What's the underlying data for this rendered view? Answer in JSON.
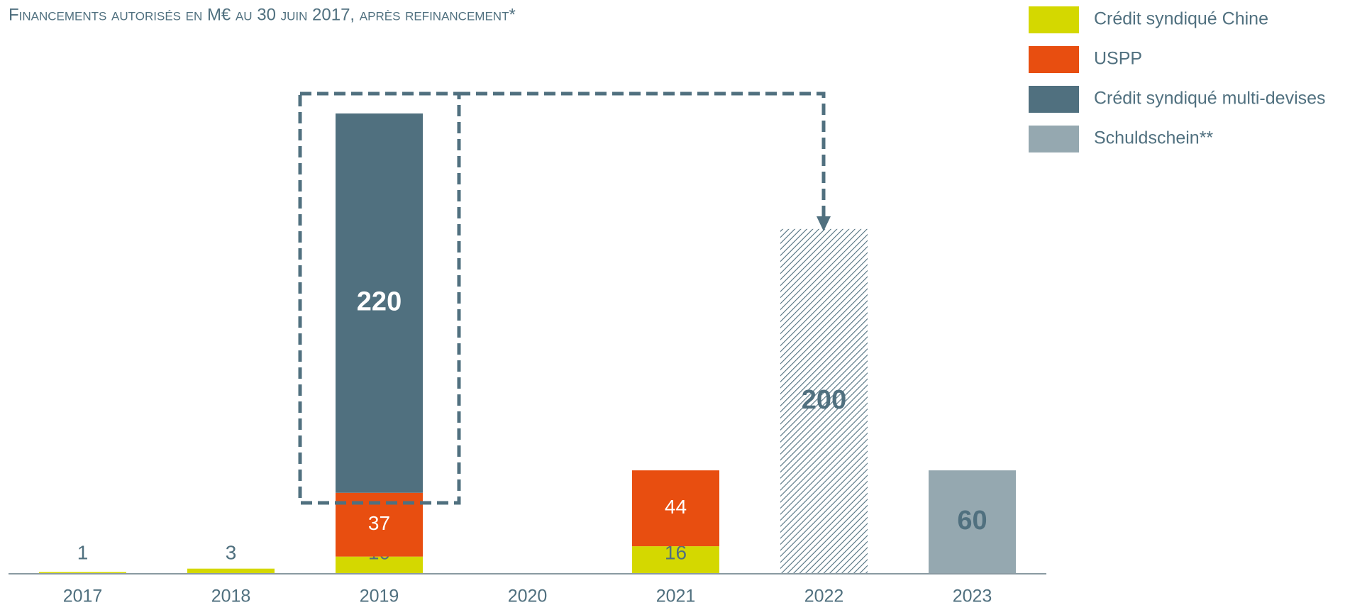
{
  "chart_data": {
    "type": "bar",
    "stacked": true,
    "title": "Financements autorisés en M€ au 30 juin 2017, après refinancement*",
    "categories": [
      "2017",
      "2018",
      "2019",
      "2020",
      "2021",
      "2022",
      "2023"
    ],
    "series": [
      {
        "name": "Crédit syndiqué Chine",
        "color": "#d4d800",
        "label_color": "#50707f",
        "label_bold": false,
        "label_position": "baseline",
        "values": [
          1,
          3,
          10,
          null,
          16,
          null,
          null
        ]
      },
      {
        "name": "USPP",
        "color": "#e84e10",
        "label_color": "#ffffff",
        "label_bold": false,
        "label_position": "center",
        "values": [
          null,
          null,
          37,
          null,
          44,
          null,
          null
        ]
      },
      {
        "name": "Crédit syndiqué multi-devises",
        "color": "#50707f",
        "label_color": "#ffffff",
        "label_bold": true,
        "label_position": "center",
        "values": [
          null,
          null,
          220,
          null,
          null,
          200,
          null
        ],
        "hatched": [
          false,
          false,
          false,
          false,
          false,
          true,
          false
        ]
      },
      {
        "name": "Schuldschein**",
        "color": "#95a8b0",
        "label_color": "#50707f",
        "label_bold": true,
        "label_position": "center",
        "values": [
          null,
          null,
          null,
          null,
          null,
          null,
          60
        ]
      }
    ],
    "legend": "top-right"
  }
}
